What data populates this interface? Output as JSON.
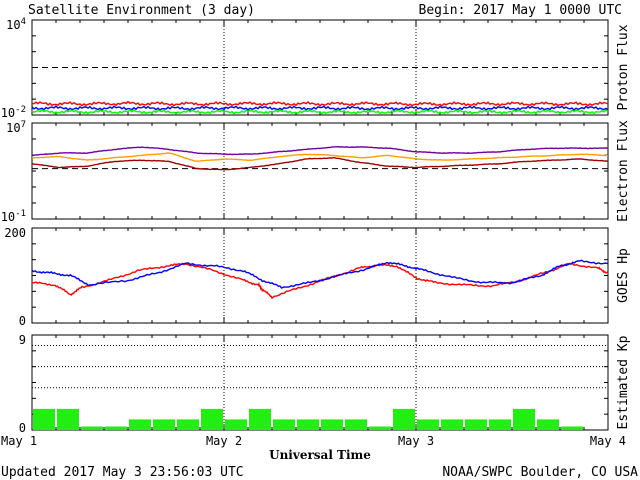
{
  "header": {
    "title": "Satellite Environment (3 day)",
    "begin": "Begin:  2017 May 1 0000 UTC"
  },
  "footer": {
    "updated": "Updated 2017 May  3 23:56:03 UTC",
    "source": "NOAA/SWPC Boulder, CO USA"
  },
  "colors": {
    "red": "#ff0000",
    "blue": "#0000ff",
    "green": "#00ff00",
    "purple": "#7000a0",
    "orange": "#ffa000",
    "darkred": "#a00000",
    "kp_bar": "#22ee11"
  },
  "chart_data": [
    {
      "type": "line",
      "id": "proton",
      "ylabel": "Proton Flux",
      "yscale": "log",
      "ylim_exp": [
        -2,
        4
      ],
      "yticks": [
        {
          "base": "10",
          "exp": "4",
          "value": 4
        },
        {
          "base": "10",
          "exp": "-2",
          "value": -2
        }
      ],
      "threshold_exp": 1,
      "xlim": [
        0,
        3
      ],
      "series": [
        {
          "color": "red",
          "values_log10": [
            -1.28,
            -1.3,
            -1.27,
            -1.3,
            -1.29,
            -1.28,
            -1.3,
            -1.29,
            -1.31,
            -1.3,
            -1.29,
            -1.3,
            -1.3
          ]
        },
        {
          "color": "blue",
          "values_log10": [
            -1.55,
            -1.57,
            -1.56,
            -1.58,
            -1.56,
            -1.57,
            -1.56,
            -1.58,
            -1.57,
            -1.56,
            -1.57,
            -1.56,
            -1.57
          ]
        },
        {
          "color": "green",
          "values_log10": [
            -1.78,
            -1.8,
            -1.79,
            -1.81,
            -1.8,
            -1.79,
            -1.8,
            -1.81,
            -1.79,
            -1.8,
            -1.8,
            -1.79,
            -1.8
          ]
        }
      ]
    },
    {
      "type": "line",
      "id": "electron",
      "ylabel": "Electron Flux",
      "yscale": "log",
      "ylim_exp": [
        -1,
        7
      ],
      "yticks": [
        {
          "base": "10",
          "exp": "7",
          "value": 7
        },
        {
          "base": "10",
          "exp": "-1",
          "value": -1
        }
      ],
      "threshold_exp": 3.2,
      "xlim": [
        0,
        3
      ],
      "series": [
        {
          "color": "purple",
          "values_log10": [
            4.3,
            4.5,
            4.5,
            4.8,
            5.0,
            4.8,
            4.5,
            4.4,
            4.4,
            4.6,
            4.8,
            5.0,
            5.0,
            4.9,
            4.6,
            4.5,
            4.5,
            4.6,
            4.8,
            4.9,
            4.9,
            4.9
          ]
        },
        {
          "color": "orange",
          "values_log10": [
            4.1,
            4.2,
            3.9,
            4.1,
            4.3,
            4.5,
            3.8,
            4.0,
            3.9,
            4.2,
            4.4,
            4.3,
            4.1,
            4.3,
            4.0,
            3.9,
            4.0,
            4.1,
            4.2,
            4.3,
            4.4,
            4.3
          ]
        },
        {
          "color": "darkred",
          "values_log10": [
            3.6,
            3.3,
            3.4,
            3.8,
            3.9,
            3.8,
            3.2,
            3.1,
            3.3,
            3.6,
            4.0,
            4.1,
            3.7,
            3.4,
            3.3,
            3.4,
            3.5,
            3.6,
            3.8,
            3.9,
            4.0,
            3.8
          ]
        }
      ]
    },
    {
      "type": "line",
      "id": "hp",
      "ylabel": "GOES Hp",
      "ylim": [
        0,
        200
      ],
      "yticks": [
        {
          "label": "200",
          "value": 200
        },
        {
          "label": "0",
          "value": 0
        }
      ],
      "xlim": [
        0,
        3
      ],
      "series": [
        {
          "color": "red",
          "x": [
            0,
            0.12,
            0.2,
            0.26,
            0.4,
            0.55,
            0.7,
            0.8,
            0.95,
            1.1,
            1.18,
            1.2,
            1.25,
            1.4,
            1.55,
            1.7,
            1.8,
            1.9,
            2.0,
            2.1,
            2.25,
            2.4,
            2.55,
            2.7,
            2.8,
            2.95,
            3.0
          ],
          "y": [
            85,
            80,
            60,
            75,
            90,
            110,
            120,
            125,
            110,
            90,
            80,
            70,
            55,
            75,
            95,
            115,
            122,
            120,
            95,
            85,
            80,
            78,
            90,
            110,
            125,
            115,
            105
          ]
        },
        {
          "color": "blue",
          "x": [
            0,
            0.1,
            0.2,
            0.3,
            0.5,
            0.65,
            0.8,
            0.95,
            1.1,
            1.2,
            1.3,
            1.45,
            1.6,
            1.75,
            1.85,
            1.95,
            2.05,
            2.2,
            2.35,
            2.5,
            2.65,
            2.75,
            2.85,
            3.0
          ],
          "y": [
            110,
            105,
            100,
            80,
            90,
            105,
            125,
            120,
            110,
            90,
            75,
            85,
            100,
            115,
            128,
            120,
            110,
            95,
            85,
            85,
            100,
            120,
            130,
            125
          ]
        }
      ]
    },
    {
      "type": "bar",
      "id": "kp",
      "ylabel": "Estimated Kp",
      "ylim": [
        0,
        9
      ],
      "yticks": [
        {
          "label": "9",
          "value": 9
        },
        {
          "label": "0",
          "value": 0
        }
      ],
      "gridlines": [
        4,
        6,
        8
      ],
      "xlim": [
        0,
        3
      ],
      "values": [
        2,
        2,
        0.33,
        0.33,
        1,
        1,
        1,
        2,
        1,
        2,
        1,
        1,
        1,
        1,
        0.33,
        2,
        1,
        1,
        1,
        1,
        2,
        1,
        0.33,
        0
      ]
    }
  ],
  "x_axis": {
    "label": "Universal Time",
    "ticks": [
      {
        "label": "May 1",
        "value": 0
      },
      {
        "label": "May 2",
        "value": 1
      },
      {
        "label": "May 3",
        "value": 2
      },
      {
        "label": "May 4",
        "value": 3
      }
    ]
  }
}
